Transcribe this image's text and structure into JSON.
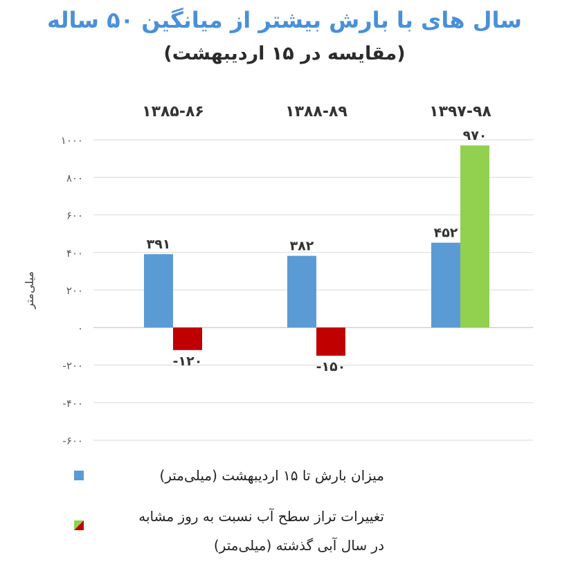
{
  "title": "سال های با بارش بیشتر از میانگین ۵۰ ساله",
  "subtitle": "(مقایسه در ۱۵ اردیبهشت)",
  "chart_data": {
    "type": "bar",
    "categories": [
      "۱۳۸۵-۸۶",
      "۱۳۸۸-۸۹",
      "۱۳۹۷-۹۸"
    ],
    "ylabel": "میلی‌متر",
    "ylim": [
      -600,
      1000
    ],
    "yticks": [
      1000,
      800,
      600,
      400,
      200,
      0,
      -200,
      -400,
      -600
    ],
    "ytick_labels": [
      "۱۰۰۰",
      "۸۰۰",
      "۶۰۰",
      "۴۰۰",
      "۲۰۰",
      "۰",
      "-۲۰۰",
      "-۴۰۰",
      "-۶۰۰"
    ],
    "grid": true,
    "series": [
      {
        "name": "میزان بارش تا ۱۵ اردیبهشت (میلی‌متر)",
        "values": [
          391,
          382,
          452
        ],
        "labels": [
          "۳۹۱",
          "۳۸۲",
          "۴۵۲"
        ],
        "colors": [
          "#5b9bd5",
          "#5b9bd5",
          "#5b9bd5"
        ]
      },
      {
        "name": "تغییرات تراز سطح آب نسبت به روز مشابه در سال آبی گذشته (میلی‌متر)",
        "values": [
          -120,
          -150,
          970
        ],
        "labels": [
          "-۱۲۰",
          "-۱۵۰",
          "۹۷۰"
        ],
        "colors": [
          "#c00000",
          "#c00000",
          "#92d050"
        ]
      }
    ]
  },
  "legend": {
    "item1": "میزان بارش تا ۱۵ اردیبهشت (میلی‌متر)",
    "item2_line1": "تغییرات تراز سطح آب نسبت به روز مشابه",
    "item2_line2": "در سال آبی گذشته (میلی‌متر)"
  }
}
